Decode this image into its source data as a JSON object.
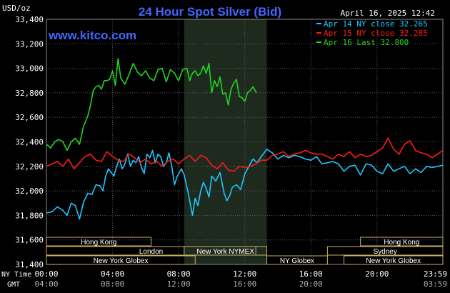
{
  "chart_data": {
    "type": "line",
    "title": "24 Hour Spot Silver (Bid)",
    "watermark": "www.kitco.com",
    "timestamp": "April 16, 2025 12:42",
    "ylabel": "USD/oz",
    "ylim": [
      31400,
      33400
    ],
    "yticks": [
      "33,400",
      "33,200",
      "33,000",
      "32,800",
      "32,600",
      "32,400",
      "32,200",
      "32,000",
      "31,800",
      "31,600",
      "31,400"
    ],
    "xlim": [
      0,
      1439
    ],
    "xticks_ny": [
      "00:00",
      "04:00",
      "08:00",
      "12:00",
      "16:00",
      "20:00",
      "23:59"
    ],
    "xticks_gmt": [
      "04:00",
      "08:00",
      "12:00",
      "16:00",
      "20:00",
      "",
      "03:59"
    ],
    "row_labels": {
      "ny": "NY Time",
      "gmt": "GMT"
    },
    "grid": true,
    "legend_position": "top-right",
    "shaded_session_minutes": [
      500,
      800
    ],
    "series": [
      {
        "name": "Apr 14 NY close 32.265",
        "color": "#1ec8ff",
        "x": [
          0,
          20,
          40,
          60,
          75,
          90,
          105,
          120,
          135,
          150,
          165,
          180,
          195,
          205,
          215,
          225,
          235,
          245,
          255,
          265,
          275,
          285,
          295,
          305,
          315,
          325,
          335,
          345,
          355,
          365,
          375,
          385,
          395,
          405,
          415,
          425,
          435,
          445,
          455,
          465,
          475,
          490,
          500,
          515,
          530,
          540,
          550,
          560,
          570,
          580,
          590,
          600,
          615,
          630,
          645,
          655,
          665,
          675,
          690,
          705,
          720,
          735,
          750,
          765,
          780,
          800,
          820,
          840,
          860,
          880,
          900,
          920,
          940,
          960,
          980,
          1000,
          1020,
          1040,
          1060,
          1080,
          1100,
          1120,
          1140,
          1160,
          1180,
          1200,
          1220,
          1240,
          1260,
          1280,
          1300,
          1320,
          1340,
          1360,
          1380,
          1400,
          1420,
          1439
        ],
        "y": [
          31820,
          31830,
          31870,
          31840,
          31800,
          31900,
          31880,
          31770,
          31910,
          31980,
          31970,
          32050,
          32040,
          32000,
          32120,
          32180,
          32150,
          32120,
          32200,
          32260,
          32180,
          32220,
          32300,
          32200,
          32250,
          32230,
          32280,
          32190,
          32140,
          32300,
          32270,
          32330,
          32230,
          32300,
          32280,
          32200,
          32230,
          32310,
          32200,
          32050,
          32120,
          32180,
          32130,
          31980,
          31800,
          31940,
          31880,
          32000,
          32070,
          32020,
          31950,
          32120,
          32080,
          32150,
          31980,
          31920,
          31960,
          32030,
          32050,
          32010,
          32140,
          32200,
          32260,
          32230,
          32280,
          32340,
          32310,
          32260,
          32290,
          32270,
          32290,
          32280,
          32260,
          32250,
          32280,
          32220,
          32230,
          32240,
          32220,
          32160,
          32200,
          32210,
          32130,
          32220,
          32210,
          32160,
          32140,
          32220,
          32160,
          32180,
          32200,
          32140,
          32180,
          32150,
          32200,
          32190,
          32200,
          32210
        ]
      },
      {
        "name": "Apr 15 NY close 32.285",
        "color": "#ff1a1a",
        "x": [
          0,
          20,
          40,
          60,
          80,
          100,
          120,
          140,
          160,
          180,
          200,
          220,
          240,
          260,
          280,
          300,
          320,
          340,
          360,
          380,
          400,
          420,
          440,
          460,
          480,
          500,
          520,
          540,
          560,
          580,
          600,
          620,
          640,
          660,
          680,
          700,
          720,
          740,
          760,
          780,
          800,
          820,
          840,
          860,
          880,
          900,
          920,
          940,
          960,
          980,
          1000,
          1020,
          1040,
          1060,
          1080,
          1100,
          1120,
          1140,
          1160,
          1180,
          1200,
          1220,
          1240,
          1260,
          1280,
          1300,
          1320,
          1340,
          1360,
          1380,
          1400,
          1420,
          1439
        ],
        "y": [
          32200,
          32220,
          32240,
          32200,
          32260,
          32180,
          32230,
          32280,
          32300,
          32250,
          32240,
          32320,
          32280,
          32250,
          32240,
          32300,
          32270,
          32230,
          32260,
          32220,
          32240,
          32200,
          32240,
          32260,
          32220,
          32260,
          32290,
          32240,
          32290,
          32270,
          32210,
          32180,
          32230,
          32170,
          32160,
          32200,
          32190,
          32200,
          32220,
          32250,
          32250,
          32290,
          32300,
          32320,
          32280,
          32300,
          32310,
          32330,
          32310,
          32300,
          32300,
          32280,
          32260,
          32300,
          32280,
          32320,
          32270,
          32300,
          32280,
          32290,
          32320,
          32350,
          32430,
          32340,
          32300,
          32380,
          32410,
          32330,
          32310,
          32300,
          32270,
          32300,
          32330
        ]
      },
      {
        "name": "Apr 16 Last 32.800",
        "color": "#22d422",
        "x": [
          0,
          15,
          30,
          45,
          60,
          75,
          90,
          105,
          120,
          135,
          150,
          160,
          170,
          180,
          190,
          200,
          210,
          220,
          230,
          240,
          250,
          260,
          270,
          285,
          300,
          315,
          330,
          345,
          360,
          375,
          390,
          405,
          420,
          435,
          450,
          465,
          480,
          495,
          510,
          520,
          530,
          540,
          550,
          560,
          570,
          580,
          590,
          600,
          610,
          620,
          630,
          640,
          650,
          660,
          670,
          680,
          690,
          700,
          710,
          720,
          730,
          740,
          750,
          762
        ],
        "y": [
          32380,
          32350,
          32400,
          32420,
          32400,
          32330,
          32400,
          32430,
          32380,
          32530,
          32610,
          32700,
          32820,
          32850,
          32860,
          32830,
          32900,
          32900,
          32910,
          32980,
          32860,
          33080,
          32920,
          32870,
          32950,
          33040,
          32970,
          32940,
          32980,
          32920,
          32900,
          32990,
          33000,
          32890,
          32990,
          32960,
          32900,
          32990,
          33000,
          32900,
          32960,
          32980,
          32940,
          32960,
          33020,
          32960,
          33040,
          32800,
          32900,
          32850,
          32930,
          32790,
          32800,
          32700,
          32830,
          32880,
          32910,
          32770,
          32760,
          32730,
          32800,
          32820,
          32850,
          32800
        ]
      }
    ],
    "market_sessions": [
      {
        "name": "Hong Kong",
        "start": 0,
        "end": 380
      },
      {
        "name": "London",
        "start": 0,
        "end": 760
      },
      {
        "name": "New York Globex",
        "start": 0,
        "end": 540
      },
      {
        "name": "New York NYMEX",
        "start": 500,
        "end": 800
      },
      {
        "name": "NY Globex",
        "start": 800,
        "end": 1020
      },
      {
        "name": "Hong Kong",
        "start": 1140,
        "end": 1439
      },
      {
        "name": "Sydney",
        "start": 1020,
        "end": 1439
      },
      {
        "name": "New York Globex",
        "start": 1080,
        "end": 1439
      }
    ]
  }
}
